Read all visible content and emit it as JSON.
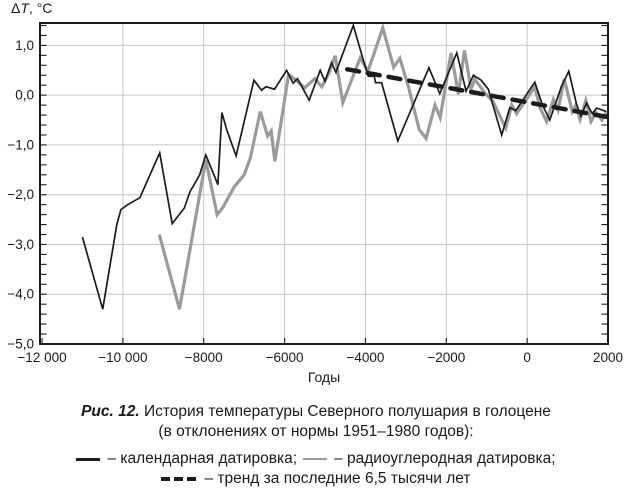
{
  "chart_data": {
    "type": "line",
    "y_axis_label": "ΔT, °C",
    "x_axis_label": "Годы",
    "xlim": [
      -12050,
      2000
    ],
    "ylim": [
      -5,
      1.45
    ],
    "grid_on": true,
    "grid_x": [
      -10000,
      -8000,
      -6000,
      -4000,
      -2000,
      0
    ],
    "grid_y": [
      -4,
      -3,
      -2,
      -1,
      0,
      1
    ],
    "y_minor_step": 0.2,
    "x_ticks": [
      {
        "v": -12000,
        "label": "−12 000"
      },
      {
        "v": -10000,
        "label": "−10 000"
      },
      {
        "v": -8000,
        "label": "−8000"
      },
      {
        "v": -6000,
        "label": "−6000"
      },
      {
        "v": -4000,
        "label": "−4000"
      },
      {
        "v": -2000,
        "label": "−2000"
      },
      {
        "v": 0,
        "label": "0"
      },
      {
        "v": 2000,
        "label": "2000"
      }
    ],
    "y_ticks": [
      {
        "v": 1,
        "label": "1,0"
      },
      {
        "v": 0,
        "label": "0,0"
      },
      {
        "v": -1,
        "label": "−1,0"
      },
      {
        "v": -2,
        "label": "−2,0"
      },
      {
        "v": -3,
        "label": "−3,0"
      },
      {
        "v": -4,
        "label": "−4,0"
      },
      {
        "v": -5,
        "label": "−5,0"
      }
    ],
    "series": [
      {
        "name": "радиоуглеродная датировка",
        "color": "#9b9b9b",
        "width": 3.2,
        "dash": null,
        "points": [
          [
            -9100,
            -2.8
          ],
          [
            -8600,
            -4.3
          ],
          [
            -7950,
            -1.3
          ],
          [
            -7670,
            -2.4
          ],
          [
            -7520,
            -2.25
          ],
          [
            -7250,
            -1.85
          ],
          [
            -7000,
            -1.6
          ],
          [
            -6850,
            -1.27
          ],
          [
            -6600,
            -0.33
          ],
          [
            -6420,
            -0.82
          ],
          [
            -6330,
            -0.72
          ],
          [
            -6240,
            -1.33
          ],
          [
            -5900,
            0.42
          ],
          [
            -5720,
            0.3
          ],
          [
            -5500,
            0.15
          ],
          [
            -5250,
            0.33
          ],
          [
            -5080,
            0.17
          ],
          [
            -4900,
            0.45
          ],
          [
            -4750,
            0.79
          ],
          [
            -4560,
            -0.15
          ],
          [
            -4130,
            0.75
          ],
          [
            -3940,
            0.48
          ],
          [
            -3570,
            1.35
          ],
          [
            -3300,
            0.56
          ],
          [
            -3150,
            0.74
          ],
          [
            -2940,
            0.18
          ],
          [
            -2670,
            -0.69
          ],
          [
            -2500,
            -0.87
          ],
          [
            -2280,
            -0.2
          ],
          [
            -2150,
            -0.45
          ],
          [
            -1880,
            0.85
          ],
          [
            -1700,
            0.02
          ],
          [
            -1550,
            0.9
          ],
          [
            -1390,
            0.12
          ],
          [
            -1300,
            0.32
          ],
          [
            -1000,
            0.0
          ],
          [
            -850,
            -0.12
          ],
          [
            -530,
            -0.66
          ],
          [
            -380,
            -0.2
          ],
          [
            -260,
            -0.37
          ],
          [
            10,
            -0.05
          ],
          [
            190,
            0.17
          ],
          [
            320,
            -0.26
          ],
          [
            480,
            -0.53
          ],
          [
            650,
            -0.09
          ],
          [
            760,
            -0.3
          ],
          [
            918,
            0.32
          ],
          [
            1117,
            -0.33
          ],
          [
            1200,
            -0.2
          ],
          [
            1310,
            -0.49
          ],
          [
            1450,
            -0.11
          ],
          [
            1580,
            -0.53
          ],
          [
            1700,
            -0.35
          ],
          [
            1850,
            -0.5
          ],
          [
            1966,
            -0.35
          ]
        ]
      },
      {
        "name": "календарная датировка",
        "color": "#1c1c1c",
        "width": 1.7,
        "dash": null,
        "points": [
          [
            -11000,
            -2.85
          ],
          [
            -10500,
            -4.3
          ],
          [
            -10150,
            -2.6
          ],
          [
            -10050,
            -2.3
          ],
          [
            -9880,
            -2.2
          ],
          [
            -9580,
            -2.06
          ],
          [
            -9090,
            -1.16
          ],
          [
            -8780,
            -2.58
          ],
          [
            -8480,
            -2.27
          ],
          [
            -8340,
            -1.94
          ],
          [
            -8100,
            -1.6
          ],
          [
            -7950,
            -1.2
          ],
          [
            -7650,
            -1.8
          ],
          [
            -7550,
            -0.35
          ],
          [
            -7430,
            -0.7
          ],
          [
            -7200,
            -1.22
          ],
          [
            -6760,
            0.3
          ],
          [
            -6570,
            0.1
          ],
          [
            -6460,
            0.17
          ],
          [
            -6250,
            0.12
          ],
          [
            -5950,
            0.5
          ],
          [
            -5790,
            0.24
          ],
          [
            -5680,
            0.33
          ],
          [
            -5390,
            -0.1
          ],
          [
            -5120,
            0.5
          ],
          [
            -5000,
            0.28
          ],
          [
            -4840,
            0.65
          ],
          [
            -4730,
            0.46
          ],
          [
            -4300,
            1.4
          ],
          [
            -4050,
            0.7
          ],
          [
            -3930,
            0.38
          ],
          [
            -3780,
            0.38
          ],
          [
            -3750,
            0.25
          ],
          [
            -3600,
            0.25
          ],
          [
            -3200,
            -0.92
          ],
          [
            -2430,
            0.55
          ],
          [
            -2160,
            0.03
          ],
          [
            -1740,
            0.85
          ],
          [
            -1510,
            0.08
          ],
          [
            -1330,
            0.4
          ],
          [
            -1140,
            0.3
          ],
          [
            -960,
            0.12
          ],
          [
            -630,
            -0.8
          ],
          [
            -430,
            -0.25
          ],
          [
            -280,
            -0.31
          ],
          [
            190,
            0.26
          ],
          [
            380,
            -0.2
          ],
          [
            560,
            -0.5
          ],
          [
            730,
            -0.1
          ],
          [
            850,
            0.18
          ],
          [
            1030,
            0.48
          ],
          [
            1220,
            -0.18
          ],
          [
            1330,
            -0.42
          ],
          [
            1470,
            -0.16
          ],
          [
            1610,
            -0.37
          ],
          [
            1720,
            -0.26
          ],
          [
            1960,
            -0.33
          ]
        ]
      },
      {
        "name": "тренд за последние 6,5 тысячи лет",
        "color": "#1c1c1c",
        "width": 4.5,
        "dash": "12 9",
        "points": [
          [
            -4450,
            0.52
          ],
          [
            2000,
            -0.44
          ]
        ]
      }
    ]
  },
  "caption": {
    "figure_label": "Рис. 12.",
    "title": "История температуры Северного полушария в голоцене",
    "subtitle": "(в отклонениях от нормы 1951–1980 годов):",
    "legend": [
      {
        "symbol": "solid-black-line",
        "label": "– календарная датировка;"
      },
      {
        "symbol": "solid-gray-line",
        "label": "– радиоуглеродная датировка;"
      },
      {
        "symbol": "dashed-black-line",
        "label": "– тренд за последние 6,5 тысячи лет"
      }
    ]
  }
}
